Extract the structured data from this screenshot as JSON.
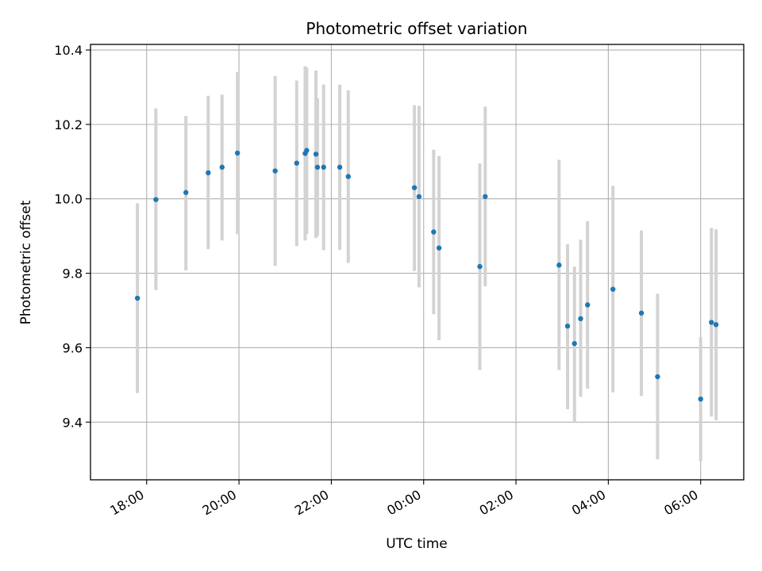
{
  "chart_data": {
    "type": "scatter",
    "title": "Photometric offset variation",
    "xlabel": "UTC time",
    "ylabel": "Photometric offset",
    "x_unit": "UTC",
    "x_range": [
      "16:47",
      "06:56 (next day)"
    ],
    "ylim": [
      9.245,
      10.415
    ],
    "grid": true,
    "x_ticks": [
      "18:00",
      "20:00",
      "22:00",
      "00:00",
      "02:00",
      "04:00",
      "06:00"
    ],
    "y_ticks": [
      "9.4",
      "9.6",
      "9.8",
      "10.0",
      "10.2",
      "10.4"
    ],
    "colors": {
      "point": "#1f77b4",
      "errorbar": "#d3d3d3",
      "grid": "#b0b0b0"
    },
    "points": [
      {
        "x": "17:48",
        "y": 9.733,
        "low": 9.478,
        "high": 9.988
      },
      {
        "x": "18:12",
        "y": 9.998,
        "low": 9.755,
        "high": 10.243
      },
      {
        "x": "18:51",
        "y": 10.017,
        "low": 9.808,
        "high": 10.223
      },
      {
        "x": "19:20",
        "y": 10.07,
        "low": 9.865,
        "high": 10.277
      },
      {
        "x": "19:38",
        "y": 10.085,
        "low": 9.888,
        "high": 10.28
      },
      {
        "x": "19:58",
        "y": 10.123,
        "low": 9.905,
        "high": 10.341
      },
      {
        "x": "20:47",
        "y": 10.075,
        "low": 9.82,
        "high": 10.33
      },
      {
        "x": "21:15",
        "y": 10.096,
        "low": 9.873,
        "high": 10.318
      },
      {
        "x": "21:26",
        "y": 10.122,
        "low": 9.888,
        "high": 10.356
      },
      {
        "x": "21:28",
        "y": 10.13,
        "low": 9.905,
        "high": 10.353
      },
      {
        "x": "21:40",
        "y": 10.12,
        "low": 9.895,
        "high": 10.345
      },
      {
        "x": "21:42",
        "y": 10.085,
        "low": 9.9,
        "high": 10.27
      },
      {
        "x": "21:50",
        "y": 10.085,
        "low": 9.862,
        "high": 10.307
      },
      {
        "x": "22:11",
        "y": 10.085,
        "low": 9.863,
        "high": 10.307
      },
      {
        "x": "22:22",
        "y": 10.06,
        "low": 9.828,
        "high": 10.292
      },
      {
        "x": "23:48",
        "y": 10.03,
        "low": 9.806,
        "high": 10.252
      },
      {
        "x": "23:54",
        "y": 10.006,
        "low": 9.762,
        "high": 10.25
      },
      {
        "x": "00:13",
        "y": 9.911,
        "low": 9.69,
        "high": 10.132
      },
      {
        "x": "00:20",
        "y": 9.868,
        "low": 9.62,
        "high": 10.115
      },
      {
        "x": "01:13",
        "y": 9.818,
        "low": 9.54,
        "high": 10.095
      },
      {
        "x": "01:20",
        "y": 10.006,
        "low": 9.765,
        "high": 10.248
      },
      {
        "x": "02:56",
        "y": 9.822,
        "low": 9.54,
        "high": 10.105
      },
      {
        "x": "03:07",
        "y": 9.658,
        "low": 9.435,
        "high": 9.878
      },
      {
        "x": "03:16",
        "y": 9.611,
        "low": 9.4,
        "high": 9.818
      },
      {
        "x": "03:24",
        "y": 9.678,
        "low": 9.468,
        "high": 9.89
      },
      {
        "x": "03:33",
        "y": 9.715,
        "low": 9.49,
        "high": 9.94
      },
      {
        "x": "04:06",
        "y": 9.757,
        "low": 9.48,
        "high": 10.035
      },
      {
        "x": "04:43",
        "y": 9.693,
        "low": 9.47,
        "high": 9.915
      },
      {
        "x": "05:04",
        "y": 9.522,
        "low": 9.3,
        "high": 9.745
      },
      {
        "x": "06:00",
        "y": 9.462,
        "low": 9.295,
        "high": 9.628
      },
      {
        "x": "06:14",
        "y": 9.668,
        "low": 9.415,
        "high": 9.922
      },
      {
        "x": "06:20",
        "y": 9.662,
        "low": 9.405,
        "high": 9.918
      }
    ]
  }
}
